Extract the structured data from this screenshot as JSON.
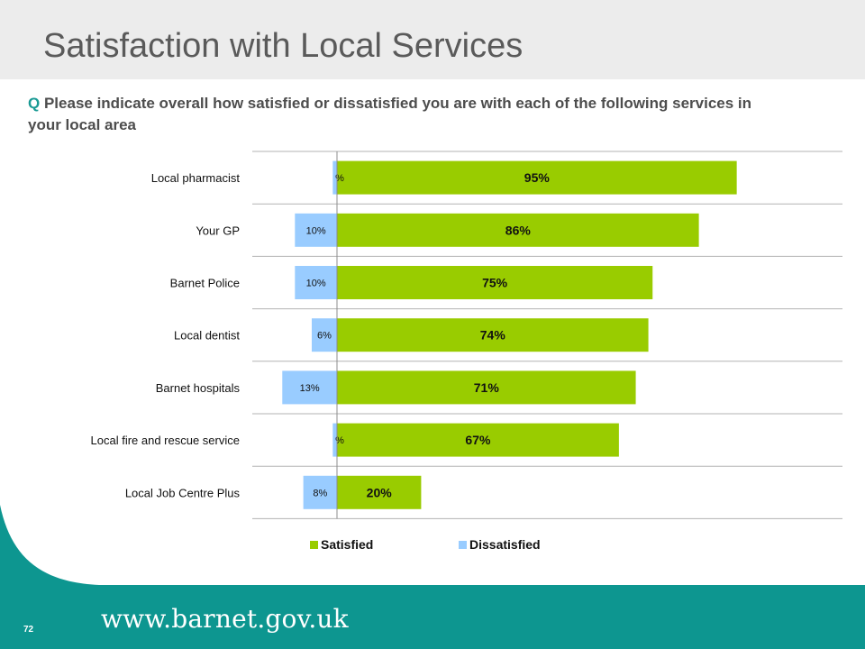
{
  "slide": {
    "title": "Satisfaction with Local Services",
    "question_prefix": "Q",
    "question": "Please indicate overall how satisfied or dissatisfied you are with each of the following services in your local area",
    "page_number": "72",
    "website": "www.barnet.gov.uk"
  },
  "colors": {
    "satisfied": "#99cc00",
    "dissatisfied": "#99ccff",
    "teal": "#0d9690",
    "title_band": "#ececec"
  },
  "legend": {
    "satisfied": "Satisfied",
    "dissatisfied": "Dissatisfied"
  },
  "chart_data": {
    "type": "bar",
    "orientation": "horizontal",
    "stacked": "diverging",
    "categories": [
      "Local pharmacist",
      "Your GP",
      "Barnet Police",
      "Local dentist",
      "Barnet hospitals",
      "Local fire and rescue service",
      "Local Job Centre Plus"
    ],
    "series": [
      {
        "name": "Satisfied",
        "values": [
          95,
          86,
          75,
          74,
          71,
          67,
          20
        ],
        "labels": [
          "95%",
          "86%",
          "75%",
          "74%",
          "71%",
          "67%",
          "20%"
        ]
      },
      {
        "name": "Dissatisfied",
        "values": [
          1,
          10,
          10,
          6,
          13,
          1,
          8
        ],
        "labels": [
          "%",
          "10%",
          "10%",
          "6%",
          "13%",
          "%",
          "8%"
        ]
      }
    ],
    "xlim": [
      -15,
      120
    ],
    "grid": true,
    "legend_position": "bottom"
  }
}
